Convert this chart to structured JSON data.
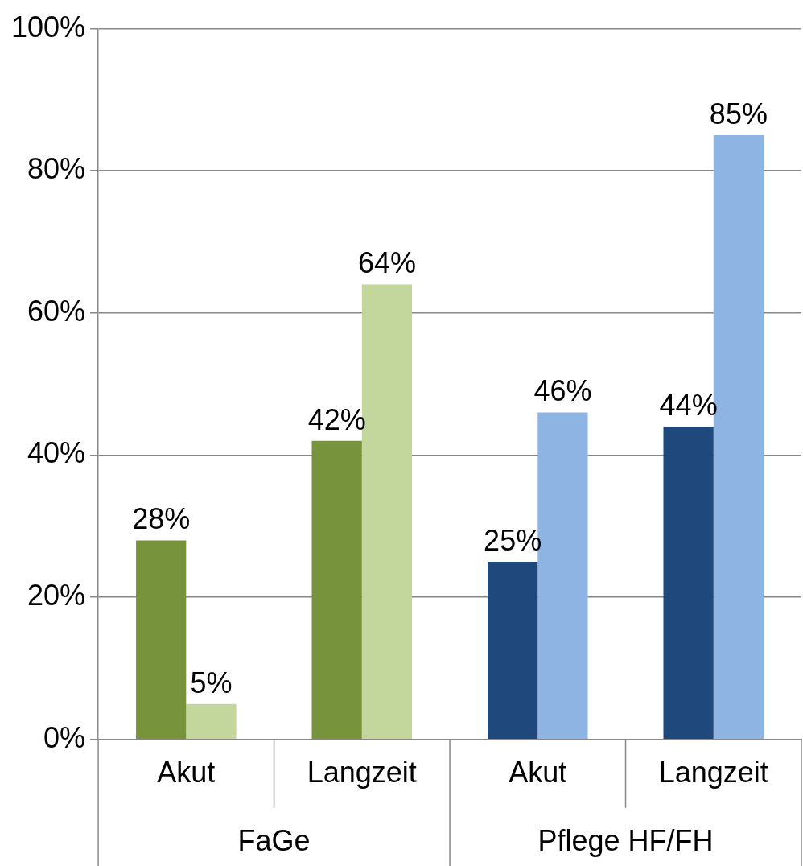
{
  "chart_data": {
    "type": "bar",
    "categories": [
      "Akut",
      "Langzeit",
      "Akut",
      "Langzeit"
    ],
    "series": [
      {
        "colors": [
          "#77933c",
          "#77933c",
          "#1f497d",
          "#1f497d"
        ],
        "values": [
          28,
          42,
          25,
          44
        ],
        "value_labels": [
          "28%",
          "42%",
          "25%",
          "44%"
        ]
      },
      {
        "colors": [
          "#c3d69b",
          "#c3d69b",
          "#8eb4e3",
          "#8eb4e3"
        ],
        "values": [
          5,
          64,
          46,
          85
        ],
        "value_labels": [
          "5%",
          "64%",
          "46%",
          "85%"
        ]
      }
    ],
    "ylim": [
      0,
      100
    ],
    "yticks": [
      {
        "value": 0,
        "label": "0%"
      },
      {
        "value": 20,
        "label": "20%"
      },
      {
        "value": 40,
        "label": "40%"
      },
      {
        "value": 60,
        "label": "60%"
      },
      {
        "value": 80,
        "label": "80%"
      },
      {
        "value": 100,
        "label": "100%"
      }
    ],
    "grid": "y",
    "legend": false,
    "annotations": [
      "FaGe",
      "Pflege HF/FH"
    ]
  }
}
